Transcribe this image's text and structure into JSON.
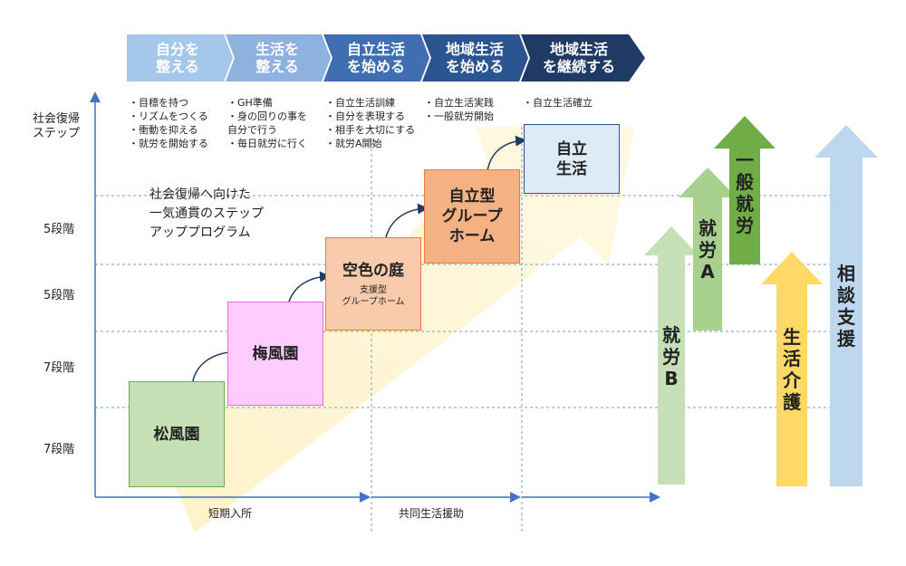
{
  "y_axis": {
    "top_label_line1": "社会復帰",
    "top_label_line2": "ステップ",
    "levels": [
      "5段階",
      "5段階",
      "7段階",
      "7段階"
    ]
  },
  "stages": [
    {
      "line1": "自分を",
      "line2": "整える",
      "color": "#a5c7e9"
    },
    {
      "line1": "生活を",
      "line2": "整える",
      "color": "#8fb1de"
    },
    {
      "line1": "自立生活",
      "line2": "を始める",
      "color": "#3f6fb2"
    },
    {
      "line1": "地域生活",
      "line2": "を始める",
      "color": "#2b5591"
    },
    {
      "line1": "地域生活",
      "line2": "を継続する",
      "color": "#1f3a64"
    }
  ],
  "stage_details": [
    [
      "・目標を持つ",
      "・リズムをつくる",
      "・衝動を抑える",
      "・就労を開始する"
    ],
    [
      "・GH準備",
      "・身の回りの事を",
      "自分で行う",
      "・毎日就労に行く"
    ],
    [
      "・自立生活訓練",
      "・自分を表現する",
      "・相手を大切にする",
      "・就労A開始"
    ],
    [
      "・自立生活実践",
      "・一般就労開始"
    ],
    [
      "・自立生活確立"
    ]
  ],
  "program_note": [
    "社会復帰へ向けた",
    "一気通貫のステップ",
    "アッププログラム"
  ],
  "facilities": [
    {
      "name": "松風園",
      "sub": "",
      "fill": "#c5e0b4",
      "border": "#70ad47"
    },
    {
      "name": "梅風園",
      "sub": "",
      "fill": "#ffccff",
      "border": "#e070e0"
    },
    {
      "name": "空色の庭",
      "sub": "支援型\nグループホーム",
      "fill": "#f8cbad",
      "border": "#ed7d31"
    },
    {
      "name": "自立型\nグループ\nホーム",
      "sub": "",
      "fill": "#f4b183",
      "border": "#ed7d31"
    },
    {
      "name": "自立\n生活",
      "sub": "",
      "fill": "#deebf7",
      "border": "#2e5597"
    }
  ],
  "x_axis": {
    "segments": [
      "短期入所",
      "共同生活援助"
    ]
  },
  "support_arrows": [
    {
      "label": [
        "就",
        "労",
        "B"
      ],
      "color": "#c5e0b4"
    },
    {
      "label": [
        "就",
        "労",
        "A"
      ],
      "color": "#a9d18e"
    },
    {
      "label": [
        "一",
        "般",
        "就",
        "労"
      ],
      "color": "#70ad47"
    },
    {
      "label": [
        "生",
        "活",
        "介",
        "護"
      ],
      "color": "#ffd966"
    },
    {
      "label": [
        "相",
        "談",
        "支",
        "援"
      ],
      "color": "#bdd7ee"
    }
  ]
}
